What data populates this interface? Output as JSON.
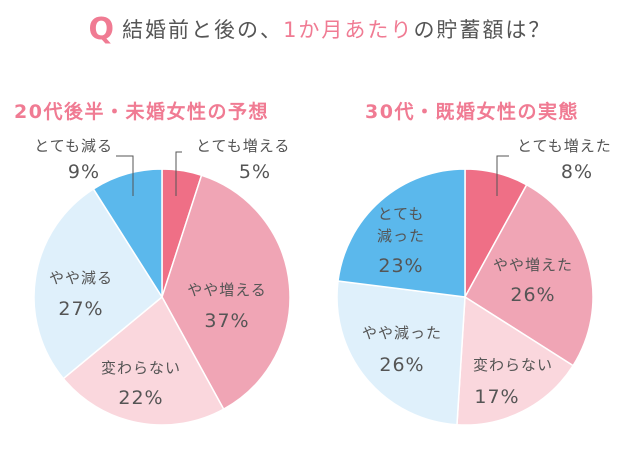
{
  "title": {
    "q": "Q",
    "part1": "結婚前と後の、",
    "highlight": "1か月あたり",
    "part2": "の貯蓄額は？"
  },
  "colors": {
    "accent": "#f07b93",
    "text": "#555555",
    "slices": [
      "#ef6f86",
      "#f0a5b5",
      "#fad7dd",
      "#dff0fb",
      "#5bb8ec"
    ]
  },
  "chart_data": [
    {
      "type": "pie",
      "title": "20代後半・未婚女性の予想",
      "start": "12 o'clock, clockwise",
      "slices": [
        {
          "label": "とても増える",
          "value": 5,
          "value_label": "5%"
        },
        {
          "label": "やや増える",
          "value": 37,
          "value_label": "37%"
        },
        {
          "label": "変わらない",
          "value": 22,
          "value_label": "22%"
        },
        {
          "label": "やや減る",
          "value": 27,
          "value_label": "27%"
        },
        {
          "label": "とても減る",
          "value": 9,
          "value_label": "9%"
        }
      ]
    },
    {
      "type": "pie",
      "title": "30代・既婚女性の実態",
      "start": "12 o'clock, clockwise",
      "slices": [
        {
          "label": "とても増えた",
          "value": 8,
          "value_label": "8%"
        },
        {
          "label": "やや増えた",
          "value": 26,
          "value_label": "26%"
        },
        {
          "label": "変わらない",
          "value": 17,
          "value_label": "17%"
        },
        {
          "label": "やや減った",
          "value": 26,
          "value_label": "26%"
        },
        {
          "label": "とても減った",
          "value": 23,
          "value_label": "23%"
        }
      ]
    }
  ]
}
